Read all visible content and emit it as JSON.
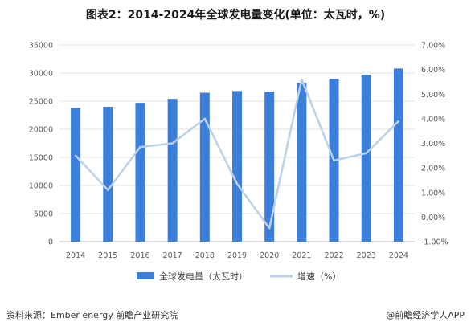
{
  "chart_data": {
    "type": "bar+line",
    "title": "图表2：2014-2024年全球发电量变化(单位：太瓦时，%)",
    "categories": [
      "2014",
      "2015",
      "2016",
      "2017",
      "2018",
      "2019",
      "2020",
      "2021",
      "2022",
      "2023",
      "2024"
    ],
    "series": [
      {
        "name": "全球发电量（太瓦时）",
        "type": "bar",
        "axis": "left",
        "values": [
          23800,
          24000,
          24700,
          25400,
          26500,
          26800,
          26700,
          28300,
          29000,
          29700,
          30800
        ]
      },
      {
        "name": "增速（%）",
        "type": "line",
        "axis": "right",
        "values": [
          2.5,
          1.1,
          2.85,
          3.0,
          4.0,
          1.35,
          -0.45,
          5.6,
          2.3,
          2.6,
          3.9
        ]
      }
    ],
    "y_left": {
      "min": 0,
      "max": 35000,
      "ticks": [
        "0",
        "5000",
        "10000",
        "15000",
        "20000",
        "25000",
        "30000",
        "35000"
      ]
    },
    "y_right": {
      "min": -1,
      "max": 7,
      "ticks": [
        "-1.00%",
        "0.00%",
        "1.00%",
        "2.00%",
        "3.00%",
        "4.00%",
        "5.00%",
        "6.00%",
        "7.00%"
      ]
    },
    "grid": "horizontal",
    "legend_placement": "bottom",
    "colors": {
      "bar": "#3c7fdb",
      "line": "#bcd0e8",
      "grid": "#e3e3e3"
    }
  },
  "footer": {
    "source": "资料来源：Ember energy 前瞻产业研究院",
    "brand": "@前瞻经济学人APP"
  }
}
